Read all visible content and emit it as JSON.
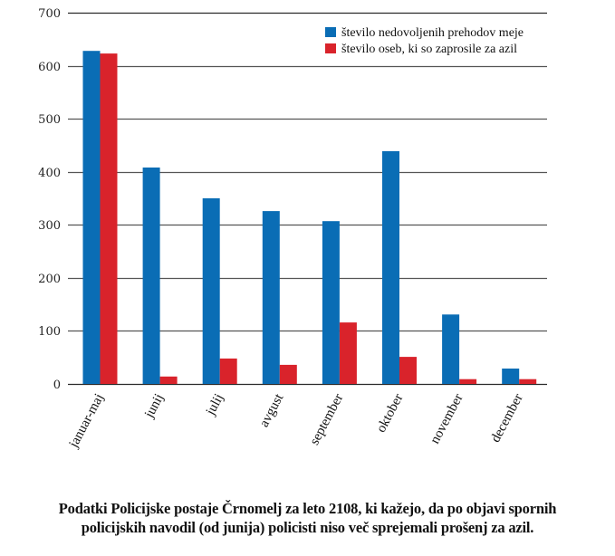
{
  "chart_data": {
    "type": "bar",
    "title": "",
    "xlabel": "",
    "ylabel": "",
    "ylim": [
      0,
      700
    ],
    "yticks": [
      0,
      100,
      200,
      300,
      400,
      500,
      600,
      700
    ],
    "ytick_labels": [
      "0",
      "100",
      "200",
      "300",
      "400",
      "500",
      "600",
      "700"
    ],
    "grid": true,
    "legend_position": "top-right",
    "categories": [
      "januar-maj",
      "junij",
      "julij",
      "avgust",
      "september",
      "oktober",
      "november",
      "december"
    ],
    "series": [
      {
        "name": "število nedovoljenih prehodov meje",
        "color": "#0a6db5",
        "values": [
          628,
          408,
          350,
          326,
          307,
          439,
          131,
          29
        ]
      },
      {
        "name": "število oseb, ki so zaprosile za azil",
        "color": "#d9232b",
        "values": [
          623,
          14,
          48,
          36,
          116,
          51,
          9,
          9
        ]
      }
    ]
  },
  "caption": {
    "line1": "Podatki Policijske postaje Črnomelj za leto 2108, ki kažejo, da po objavi spornih",
    "line2": "policijskih navodil (od junija) policisti niso več sprejemali prošenj za azil."
  }
}
